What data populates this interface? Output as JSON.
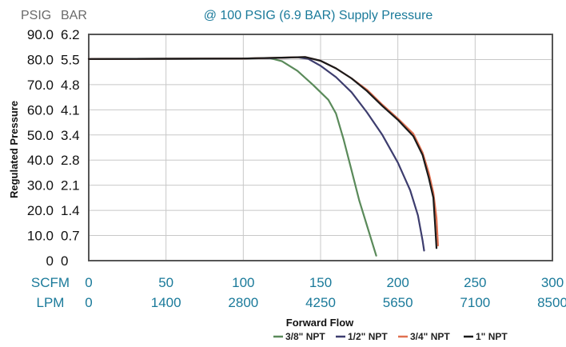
{
  "chart_data": {
    "type": "line",
    "title": "@ 100 PSIG (6.9 BAR) Supply Pressure",
    "ylabel": "Regulated Pressure",
    "xlabel": "Forward Flow",
    "y_units": [
      "PSIG",
      "BAR"
    ],
    "x_units": [
      "SCFM",
      "LPM"
    ],
    "yticks_psig": [
      "0",
      "10.0",
      "20.0",
      "30.0",
      "40.0",
      "50.0",
      "60.0",
      "70.0",
      "80.0",
      "90.0"
    ],
    "yticks_bar": [
      "0",
      "0.7",
      "1.4",
      "2.1",
      "2.8",
      "3.4",
      "4.1",
      "4.8",
      "5.5",
      "6.2"
    ],
    "xticks_scfm": [
      "0",
      "50",
      "100",
      "150",
      "200",
      "250",
      "300"
    ],
    "xticks_lpm": [
      "0",
      "1400",
      "2800",
      "4250",
      "5650",
      "7100",
      "8500"
    ],
    "xlim": [
      0,
      300
    ],
    "ylim": [
      0,
      90
    ],
    "grid": true,
    "legend_position": "bottom-right",
    "series": [
      {
        "name": "3/8\" NPT",
        "color": "#5a8a5a",
        "points": [
          [
            0,
            80.2
          ],
          [
            50,
            80.3
          ],
          [
            100,
            80.4
          ],
          [
            110,
            80.5
          ],
          [
            117,
            80.6
          ],
          [
            125,
            79.3
          ],
          [
            135,
            75.5
          ],
          [
            145,
            70
          ],
          [
            155,
            64
          ],
          [
            160,
            58.5
          ],
          [
            165,
            48
          ],
          [
            170,
            36
          ],
          [
            175,
            24
          ],
          [
            180,
            14
          ],
          [
            184,
            6
          ],
          [
            186,
            2
          ]
        ]
      },
      {
        "name": "1/2\" NPT",
        "color": "#3d3d6e",
        "points": [
          [
            0,
            80.2
          ],
          [
            50,
            80.3
          ],
          [
            100,
            80.4
          ],
          [
            120,
            80.6
          ],
          [
            135,
            80.9
          ],
          [
            142,
            80.3
          ],
          [
            150,
            77.5
          ],
          [
            160,
            73
          ],
          [
            170,
            67
          ],
          [
            180,
            59
          ],
          [
            190,
            50
          ],
          [
            200,
            39
          ],
          [
            208,
            28
          ],
          [
            213,
            18
          ],
          [
            216,
            8
          ],
          [
            217,
            4
          ]
        ]
      },
      {
        "name": "3/4\" NPT",
        "color": "#e07050",
        "points": [
          [
            0,
            80.2
          ],
          [
            50,
            80.3
          ],
          [
            100,
            80.4
          ],
          [
            130,
            80.8
          ],
          [
            140,
            81
          ],
          [
            150,
            79.5
          ],
          [
            160,
            76.5
          ],
          [
            170,
            72.5
          ],
          [
            180,
            68
          ],
          [
            190,
            62
          ],
          [
            200,
            56.5
          ],
          [
            210,
            50.5
          ],
          [
            216,
            43
          ],
          [
            220,
            35
          ],
          [
            223,
            27
          ],
          [
            225,
            17
          ],
          [
            226,
            6
          ]
        ]
      },
      {
        "name": "1\" NPT",
        "color": "#1a1a1a",
        "points": [
          [
            0,
            80.2
          ],
          [
            50,
            80.3
          ],
          [
            100,
            80.4
          ],
          [
            130,
            80.8
          ],
          [
            140,
            81
          ],
          [
            150,
            79.5
          ],
          [
            160,
            76.5
          ],
          [
            170,
            72.5
          ],
          [
            180,
            67.5
          ],
          [
            190,
            61.5
          ],
          [
            200,
            56
          ],
          [
            210,
            49.5
          ],
          [
            216,
            42
          ],
          [
            220,
            33
          ],
          [
            223,
            25
          ],
          [
            224,
            15
          ],
          [
            225,
            5
          ]
        ]
      }
    ]
  }
}
